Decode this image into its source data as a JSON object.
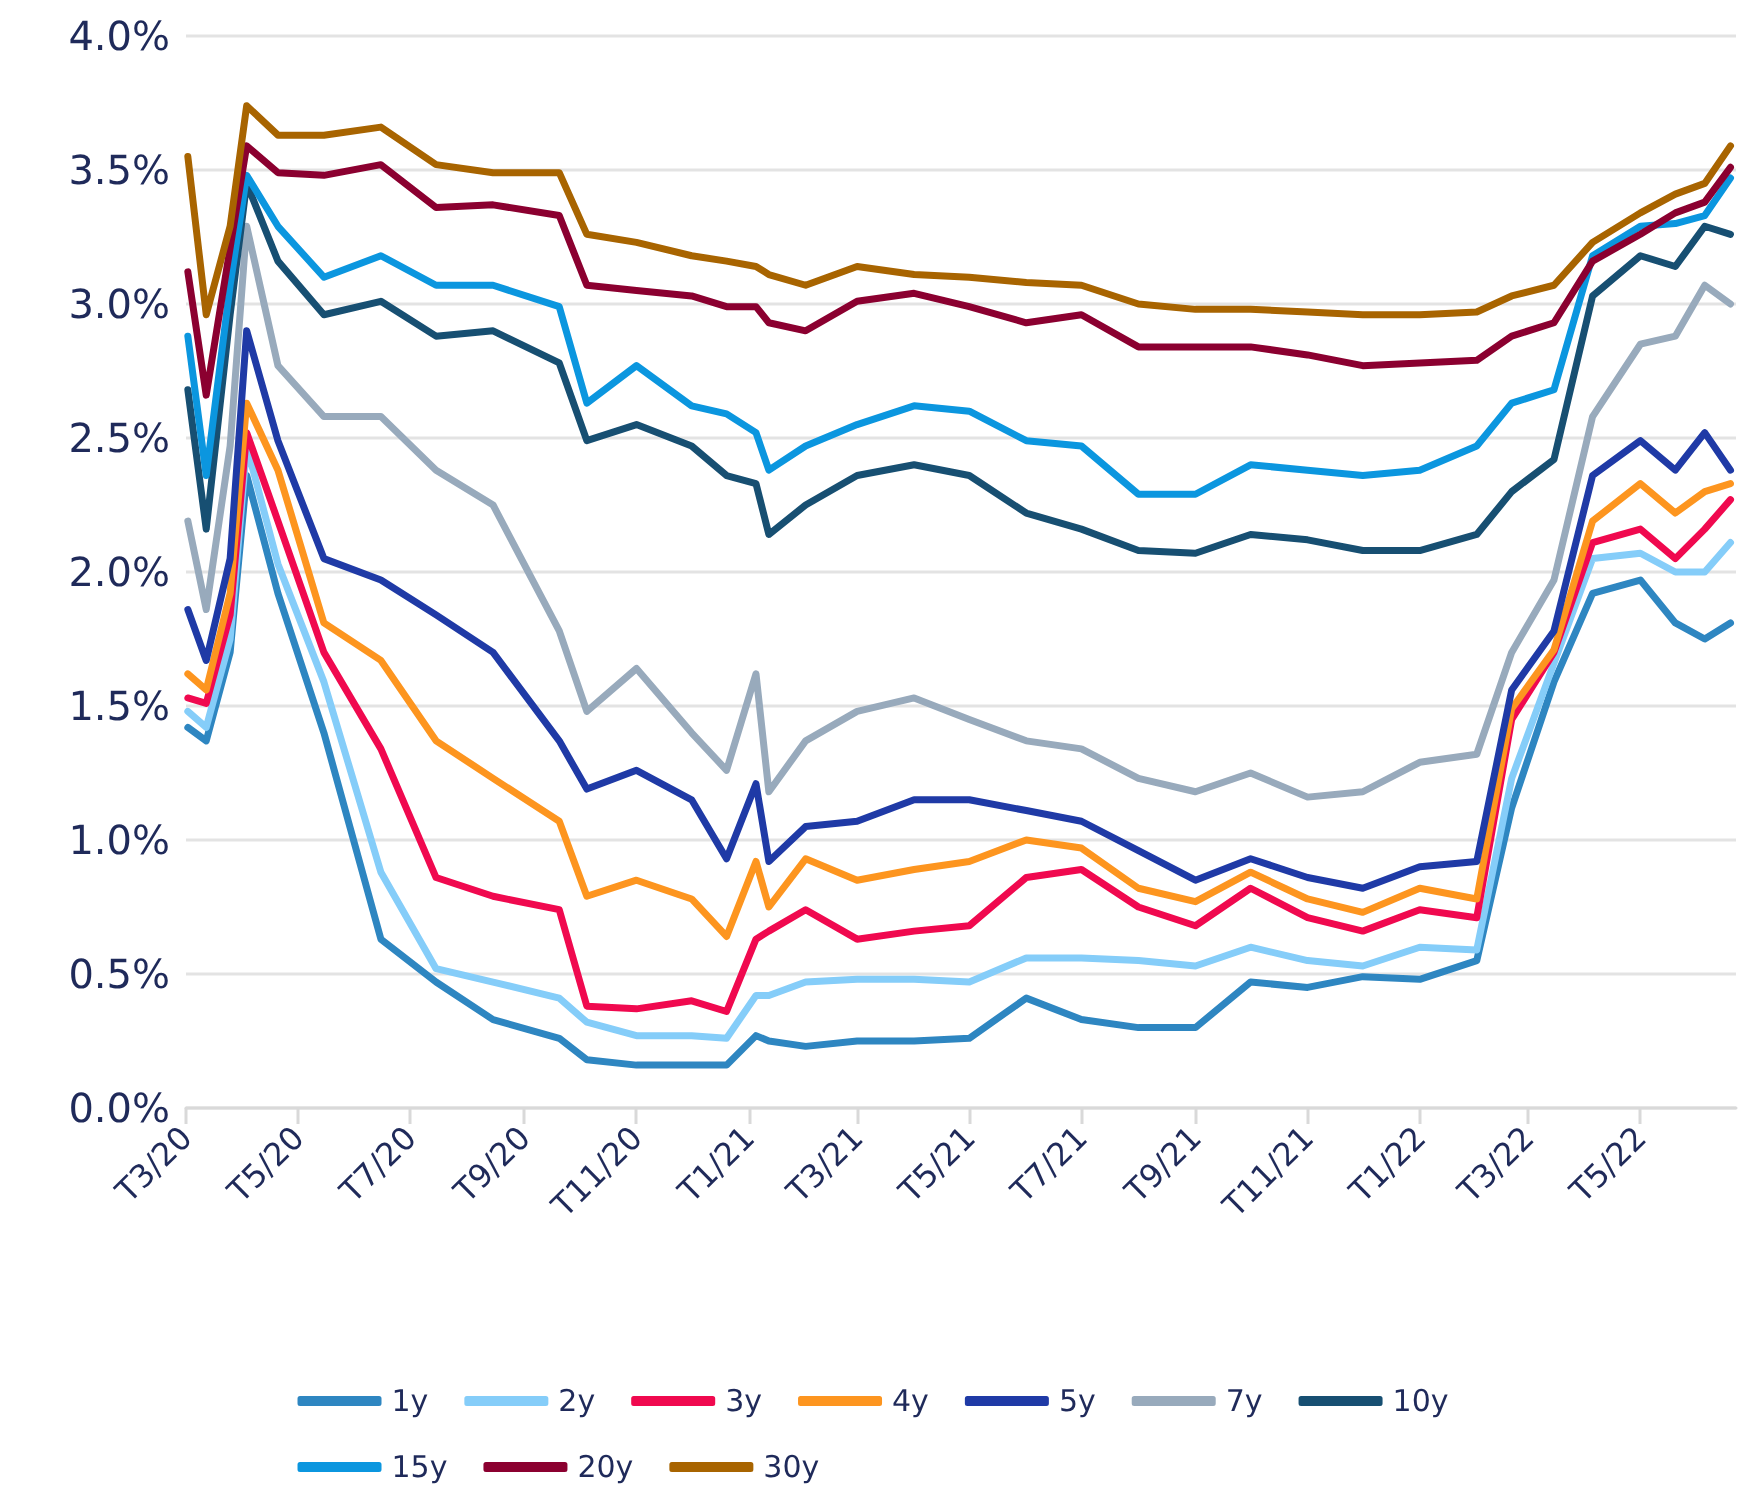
{
  "chart_data": {
    "type": "line",
    "x": [
      "2020-03-02",
      "2020-03-12",
      "2020-03-25",
      "2020-04-03",
      "2020-04-20",
      "2020-05-15",
      "2020-06-15",
      "2020-07-15",
      "2020-08-15",
      "2020-09-20",
      "2020-10-05",
      "2020-11-01",
      "2020-12-01",
      "2020-12-20",
      "2021-01-05",
      "2021-01-12",
      "2021-02-01",
      "2021-03-01",
      "2021-04-01",
      "2021-05-01",
      "2021-06-01",
      "2021-07-01",
      "2021-08-01",
      "2021-09-01",
      "2021-10-01",
      "2021-11-01",
      "2021-12-01",
      "2022-01-01",
      "2022-02-01",
      "2022-02-20",
      "2022-03-15",
      "2022-04-05",
      "2022-05-01",
      "2022-05-20",
      "2022-06-05",
      "2022-06-19"
    ],
    "series": [
      {
        "name": "1y",
        "color": "#2e86c1",
        "values": [
          1.42,
          1.37,
          1.7,
          2.36,
          1.92,
          1.4,
          0.63,
          0.47,
          0.33,
          0.26,
          0.18,
          0.16,
          0.16,
          0.16,
          0.27,
          0.25,
          0.23,
          0.25,
          0.25,
          0.26,
          0.41,
          0.33,
          0.3,
          0.3,
          0.47,
          0.45,
          0.49,
          0.48,
          0.55,
          1.12,
          1.59,
          1.92,
          1.97,
          1.81,
          1.75,
          1.81
        ]
      },
      {
        "name": "2y",
        "color": "#85cdf9",
        "values": [
          1.48,
          1.42,
          1.75,
          2.47,
          2.03,
          1.59,
          0.88,
          0.52,
          0.47,
          0.41,
          0.32,
          0.27,
          0.27,
          0.26,
          0.42,
          0.42,
          0.47,
          0.48,
          0.48,
          0.47,
          0.56,
          0.56,
          0.55,
          0.53,
          0.6,
          0.55,
          0.53,
          0.6,
          0.59,
          1.23,
          1.66,
          2.05,
          2.07,
          2.0,
          2.0,
          2.11
        ]
      },
      {
        "name": "3y",
        "color": "#f0094f",
        "values": [
          1.53,
          1.51,
          1.84,
          2.52,
          2.19,
          1.7,
          1.34,
          0.86,
          0.79,
          0.74,
          0.38,
          0.37,
          0.4,
          0.36,
          0.63,
          0.66,
          0.74,
          0.63,
          0.66,
          0.68,
          0.86,
          0.89,
          0.75,
          0.68,
          0.82,
          0.71,
          0.66,
          0.74,
          0.71,
          1.45,
          1.7,
          2.11,
          2.16,
          2.05,
          2.16,
          2.27
        ]
      },
      {
        "name": "4y",
        "color": "#fd951f",
        "values": [
          1.62,
          1.56,
          1.92,
          2.63,
          2.38,
          1.81,
          1.67,
          1.37,
          1.23,
          1.07,
          0.79,
          0.85,
          0.78,
          0.64,
          0.92,
          0.75,
          0.93,
          0.85,
          0.89,
          0.92,
          1.0,
          0.97,
          0.82,
          0.77,
          0.88,
          0.78,
          0.73,
          0.82,
          0.78,
          1.49,
          1.71,
          2.19,
          2.33,
          2.22,
          2.3,
          2.33
        ]
      },
      {
        "name": "5y",
        "color": "#1f3aa6",
        "values": [
          1.86,
          1.67,
          2.05,
          2.9,
          2.49,
          2.05,
          1.97,
          1.84,
          1.7,
          1.37,
          1.19,
          1.26,
          1.15,
          0.93,
          1.21,
          0.92,
          1.05,
          1.07,
          1.15,
          1.15,
          1.11,
          1.07,
          0.96,
          0.85,
          0.93,
          0.86,
          0.82,
          0.9,
          0.92,
          1.56,
          1.78,
          2.36,
          2.49,
          2.38,
          2.52,
          2.38
        ]
      },
      {
        "name": "7y",
        "color": "#98aabc",
        "values": [
          2.19,
          1.86,
          2.47,
          3.29,
          2.77,
          2.58,
          2.58,
          2.38,
          2.25,
          1.78,
          1.48,
          1.64,
          1.4,
          1.26,
          1.62,
          1.18,
          1.37,
          1.48,
          1.53,
          1.45,
          1.37,
          1.34,
          1.23,
          1.18,
          1.25,
          1.16,
          1.18,
          1.29,
          1.32,
          1.7,
          1.97,
          2.58,
          2.85,
          2.88,
          3.07,
          3.0
        ]
      },
      {
        "name": "10y",
        "color": "#174f72",
        "values": [
          2.68,
          2.16,
          2.96,
          3.45,
          3.16,
          2.96,
          3.01,
          2.88,
          2.9,
          2.78,
          2.49,
          2.55,
          2.47,
          2.36,
          2.33,
          2.14,
          2.25,
          2.36,
          2.4,
          2.36,
          2.22,
          2.16,
          2.08,
          2.07,
          2.14,
          2.12,
          2.08,
          2.08,
          2.14,
          2.3,
          2.42,
          3.03,
          3.18,
          3.14,
          3.29,
          3.26
        ]
      },
      {
        "name": "15y",
        "color": "#0b96df",
        "values": [
          2.88,
          2.36,
          3.07,
          3.48,
          3.29,
          3.1,
          3.18,
          3.07,
          3.07,
          2.99,
          2.63,
          2.77,
          2.62,
          2.59,
          2.52,
          2.38,
          2.47,
          2.55,
          2.62,
          2.6,
          2.49,
          2.47,
          2.29,
          2.29,
          2.4,
          2.38,
          2.36,
          2.38,
          2.47,
          2.63,
          2.68,
          3.18,
          3.29,
          3.3,
          3.33,
          3.47
        ]
      },
      {
        "name": "20y",
        "color": "#8b0030",
        "values": [
          3.12,
          2.66,
          3.21,
          3.59,
          3.49,
          3.48,
          3.52,
          3.36,
          3.37,
          3.33,
          3.07,
          3.05,
          3.03,
          2.99,
          2.99,
          2.93,
          2.9,
          3.01,
          3.04,
          2.99,
          2.93,
          2.96,
          2.84,
          2.84,
          2.84,
          2.81,
          2.77,
          2.78,
          2.79,
          2.88,
          2.93,
          3.16,
          3.26,
          3.34,
          3.38,
          3.51
        ]
      },
      {
        "name": "30y",
        "color": "#a86400",
        "values": [
          3.55,
          2.96,
          3.29,
          3.74,
          3.63,
          3.63,
          3.66,
          3.52,
          3.49,
          3.49,
          3.26,
          3.23,
          3.18,
          3.16,
          3.14,
          3.11,
          3.07,
          3.14,
          3.11,
          3.1,
          3.08,
          3.07,
          3.0,
          2.98,
          2.98,
          2.97,
          2.96,
          2.96,
          2.97,
          3.03,
          3.07,
          3.23,
          3.34,
          3.41,
          3.45,
          3.59
        ]
      }
    ],
    "xlim": [
      "2020-03-01",
      "2022-06-22"
    ],
    "xticks": [
      {
        "value": "2020-03-01",
        "label": "T3/20"
      },
      {
        "value": "2020-05-01",
        "label": "T5/20"
      },
      {
        "value": "2020-07-01",
        "label": "T7/20"
      },
      {
        "value": "2020-09-01",
        "label": "T9/20"
      },
      {
        "value": "2020-11-01",
        "label": "T11/20"
      },
      {
        "value": "2021-01-01",
        "label": "T1/21"
      },
      {
        "value": "2021-03-01",
        "label": "T3/21"
      },
      {
        "value": "2021-05-01",
        "label": "T5/21"
      },
      {
        "value": "2021-07-01",
        "label": "T7/21"
      },
      {
        "value": "2021-09-01",
        "label": "T9/21"
      },
      {
        "value": "2021-11-01",
        "label": "T11/21"
      },
      {
        "value": "2022-01-01",
        "label": "T1/22"
      },
      {
        "value": "2022-03-01",
        "label": "T3/22"
      },
      {
        "value": "2022-05-01",
        "label": "T5/22"
      }
    ],
    "ylim": [
      0,
      4
    ],
    "yticks": [
      {
        "value": 0,
        "label": "0.0%"
      },
      {
        "value": 0.5,
        "label": "0.5%"
      },
      {
        "value": 1,
        "label": "1.0%"
      },
      {
        "value": 1.5,
        "label": "1.5%"
      },
      {
        "value": 2,
        "label": "2.0%"
      },
      {
        "value": 2.5,
        "label": "2.5%"
      },
      {
        "value": 3,
        "label": "3.0%"
      },
      {
        "value": 3.5,
        "label": "3.5%"
      },
      {
        "value": 4,
        "label": "4.0%"
      }
    ],
    "grid": "y",
    "legend": "bottom",
    "marker": "none",
    "line_style": "solid"
  }
}
